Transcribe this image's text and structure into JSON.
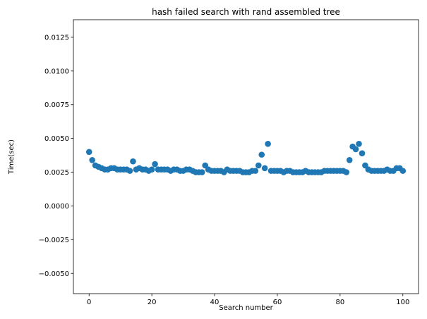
{
  "chart_data": {
    "type": "scatter",
    "title": "hash failed search with rand assembled tree",
    "xlabel": "Search number",
    "ylabel": "Time(sec)",
    "xlim": [
      -5,
      105
    ],
    "ylim": [
      -0.0065,
      0.0138
    ],
    "x_ticks": [
      0,
      20,
      40,
      60,
      80,
      100
    ],
    "x_tick_labels": [
      "0",
      "20",
      "40",
      "60",
      "80",
      "100"
    ],
    "y_ticks": [
      -0.005,
      -0.0025,
      0.0,
      0.0025,
      0.005,
      0.0075,
      0.01,
      0.0125
    ],
    "y_tick_labels": [
      "−0.0050",
      "−0.0025",
      "0.0000",
      "0.0025",
      "0.0050",
      "0.0075",
      "0.0100",
      "0.0125"
    ],
    "grid": false,
    "marker_color": "#1f77b4",
    "series": [
      {
        "x": [
          0,
          1,
          2,
          3,
          4,
          5,
          6,
          7,
          8,
          9,
          10,
          11,
          12,
          13,
          14,
          15,
          16,
          17,
          18,
          19,
          20,
          21,
          22,
          23,
          24,
          25,
          26,
          27,
          28,
          29,
          30,
          31,
          32,
          33,
          34,
          35,
          36,
          37,
          38,
          39,
          40,
          41,
          42,
          43,
          44,
          45,
          46,
          47,
          48,
          49,
          50,
          51,
          52,
          53,
          54,
          55,
          56,
          57,
          58,
          59,
          60,
          61,
          62,
          63,
          64,
          65,
          66,
          67,
          68,
          69,
          70,
          71,
          72,
          73,
          74,
          75,
          76,
          77,
          78,
          79,
          80,
          81,
          82,
          83,
          84,
          85,
          86,
          87,
          88,
          89,
          90,
          91,
          92,
          93,
          94,
          95,
          96,
          97,
          98,
          99,
          100
        ],
        "y": [
          0.004,
          0.0034,
          0.003,
          0.0029,
          0.0028,
          0.0027,
          0.0027,
          0.0028,
          0.0028,
          0.0027,
          0.0027,
          0.0027,
          0.0027,
          0.0026,
          0.0033,
          0.0027,
          0.0028,
          0.0027,
          0.0027,
          0.0026,
          0.0027,
          0.0031,
          0.0027,
          0.0027,
          0.0027,
          0.0027,
          0.0026,
          0.0027,
          0.0027,
          0.0026,
          0.0026,
          0.0027,
          0.0027,
          0.0026,
          0.0025,
          0.0025,
          0.0025,
          0.003,
          0.0027,
          0.0026,
          0.0026,
          0.0026,
          0.0026,
          0.0025,
          0.0027,
          0.0026,
          0.0026,
          0.0026,
          0.0026,
          0.0025,
          0.0025,
          0.0025,
          0.0026,
          0.0026,
          0.003,
          0.0038,
          0.0028,
          0.0046,
          0.0026,
          0.0026,
          0.0026,
          0.0026,
          0.0025,
          0.0026,
          0.0026,
          0.0025,
          0.0025,
          0.0025,
          0.0025,
          0.0026,
          0.0025,
          0.0025,
          0.0025,
          0.0025,
          0.0025,
          0.0026,
          0.0026,
          0.0026,
          0.0026,
          0.0026,
          0.0026,
          0.0026,
          0.0025,
          0.0034,
          0.0044,
          0.0042,
          0.0046,
          0.0039,
          0.003,
          0.0027,
          0.0026,
          0.0026,
          0.0026,
          0.0026,
          0.0026,
          0.0027,
          0.0026,
          0.0026,
          0.0028,
          0.0028,
          0.0026
        ]
      }
    ]
  }
}
